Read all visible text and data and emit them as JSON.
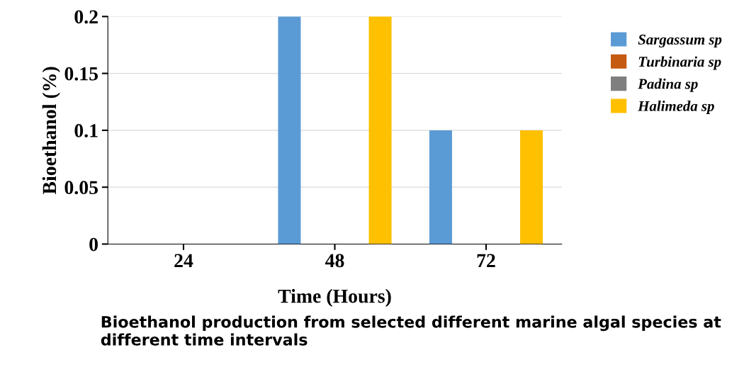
{
  "chart_data": {
    "type": "bar",
    "xlabel": "Time (Hours)",
    "ylabel": "Bioethanol (%)",
    "categories": [
      "24",
      "48",
      "72"
    ],
    "series": [
      {
        "name": "Sargassum sp",
        "color": "#5b9bd5",
        "values": [
          0,
          0.2,
          0.1
        ]
      },
      {
        "name": "Turbinaria sp",
        "color": "#c55a11",
        "values": [
          0,
          0,
          0
        ]
      },
      {
        "name": "Padina sp",
        "color": "#7f7f7f",
        "values": [
          0,
          0,
          0
        ]
      },
      {
        "name": "Halimeda sp",
        "color": "#ffc000",
        "values": [
          0,
          0.2,
          0.1
        ]
      }
    ],
    "ylim": [
      0,
      0.2
    ],
    "yticks": [
      0,
      0.05,
      0.1,
      0.15,
      0.2
    ],
    "grid": "y",
    "legend": "right",
    "annotations": [
      "Bioethanol production from selected different marine algal species at different time intervals"
    ]
  }
}
